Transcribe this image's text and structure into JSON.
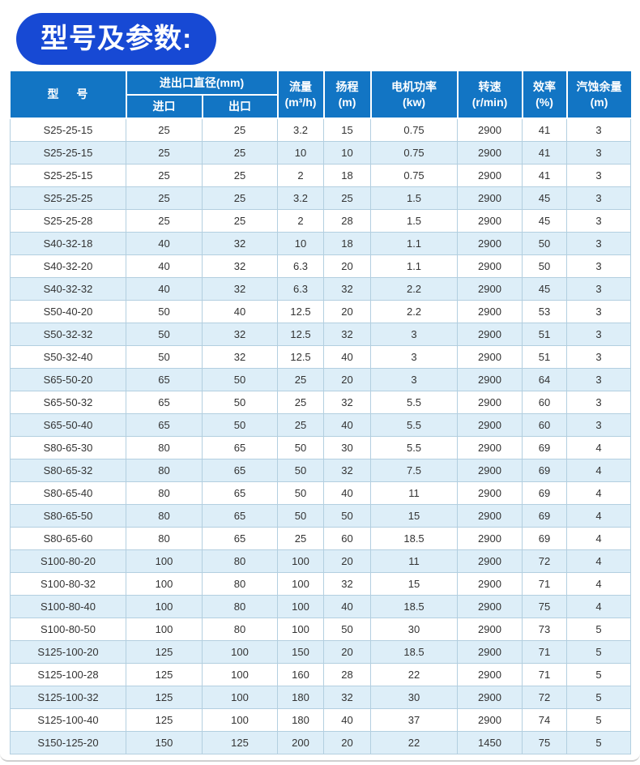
{
  "title": "型号及参数:",
  "colors": {
    "pill_blue": "#1749d4",
    "header_blue": "#1275c4",
    "stripe_blue": "#ddeef8",
    "grid_border": "#b3cfe0",
    "text_dark": "#333333"
  },
  "table": {
    "header": {
      "model": "型 号",
      "diameter_group": "进出口直径(mm)",
      "inlet": "进口",
      "outlet": "出口",
      "flow": {
        "l1": "流量",
        "l2": "(m³/h)"
      },
      "head": {
        "l1": "扬程",
        "l2": "(m)"
      },
      "power": {
        "l1": "电机功率",
        "l2": "(kw)"
      },
      "speed": {
        "l1": "转速",
        "l2": "(r/min)"
      },
      "efficiency": {
        "l1": "效率",
        "l2": "(%)"
      },
      "npsh": {
        "l1": "汽蚀余量",
        "l2": "(m)"
      }
    },
    "rows": [
      [
        "S25-25-15",
        "25",
        "25",
        "3.2",
        "15",
        "0.75",
        "2900",
        "41",
        "3"
      ],
      [
        "S25-25-15",
        "25",
        "25",
        "10",
        "10",
        "0.75",
        "2900",
        "41",
        "3"
      ],
      [
        "S25-25-15",
        "25",
        "25",
        "2",
        "18",
        "0.75",
        "2900",
        "41",
        "3"
      ],
      [
        "S25-25-25",
        "25",
        "25",
        "3.2",
        "25",
        "1.5",
        "2900",
        "45",
        "3"
      ],
      [
        "S25-25-28",
        "25",
        "25",
        "2",
        "28",
        "1.5",
        "2900",
        "45",
        "3"
      ],
      [
        "S40-32-18",
        "40",
        "32",
        "10",
        "18",
        "1.1",
        "2900",
        "50",
        "3"
      ],
      [
        "S40-32-20",
        "40",
        "32",
        "6.3",
        "20",
        "1.1",
        "2900",
        "50",
        "3"
      ],
      [
        "S40-32-32",
        "40",
        "32",
        "6.3",
        "32",
        "2.2",
        "2900",
        "45",
        "3"
      ],
      [
        "S50-40-20",
        "50",
        "40",
        "12.5",
        "20",
        "2.2",
        "2900",
        "53",
        "3"
      ],
      [
        "S50-32-32",
        "50",
        "32",
        "12.5",
        "32",
        "3",
        "2900",
        "51",
        "3"
      ],
      [
        "S50-32-40",
        "50",
        "32",
        "12.5",
        "40",
        "3",
        "2900",
        "51",
        "3"
      ],
      [
        "S65-50-20",
        "65",
        "50",
        "25",
        "20",
        "3",
        "2900",
        "64",
        "3"
      ],
      [
        "S65-50-32",
        "65",
        "50",
        "25",
        "32",
        "5.5",
        "2900",
        "60",
        "3"
      ],
      [
        "S65-50-40",
        "65",
        "50",
        "25",
        "40",
        "5.5",
        "2900",
        "60",
        "3"
      ],
      [
        "S80-65-30",
        "80",
        "65",
        "50",
        "30",
        "5.5",
        "2900",
        "69",
        "4"
      ],
      [
        "S80-65-32",
        "80",
        "65",
        "50",
        "32",
        "7.5",
        "2900",
        "69",
        "4"
      ],
      [
        "S80-65-40",
        "80",
        "65",
        "50",
        "40",
        "11",
        "2900",
        "69",
        "4"
      ],
      [
        "S80-65-50",
        "80",
        "65",
        "50",
        "50",
        "15",
        "2900",
        "69",
        "4"
      ],
      [
        "S80-65-60",
        "80",
        "65",
        "25",
        "60",
        "18.5",
        "2900",
        "69",
        "4"
      ],
      [
        "S100-80-20",
        "100",
        "80",
        "100",
        "20",
        "11",
        "2900",
        "72",
        "4"
      ],
      [
        "S100-80-32",
        "100",
        "80",
        "100",
        "32",
        "15",
        "2900",
        "71",
        "4"
      ],
      [
        "S100-80-40",
        "100",
        "80",
        "100",
        "40",
        "18.5",
        "2900",
        "75",
        "4"
      ],
      [
        "S100-80-50",
        "100",
        "80",
        "100",
        "50",
        "30",
        "2900",
        "73",
        "5"
      ],
      [
        "S125-100-20",
        "125",
        "100",
        "150",
        "20",
        "18.5",
        "2900",
        "71",
        "5"
      ],
      [
        "S125-100-28",
        "125",
        "100",
        "160",
        "28",
        "22",
        "2900",
        "71",
        "5"
      ],
      [
        "S125-100-32",
        "125",
        "100",
        "180",
        "32",
        "30",
        "2900",
        "72",
        "5"
      ],
      [
        "S125-100-40",
        "125",
        "100",
        "180",
        "40",
        "37",
        "2900",
        "74",
        "5"
      ],
      [
        "S150-125-20",
        "150",
        "125",
        "200",
        "20",
        "22",
        "1450",
        "75",
        "5"
      ]
    ]
  }
}
